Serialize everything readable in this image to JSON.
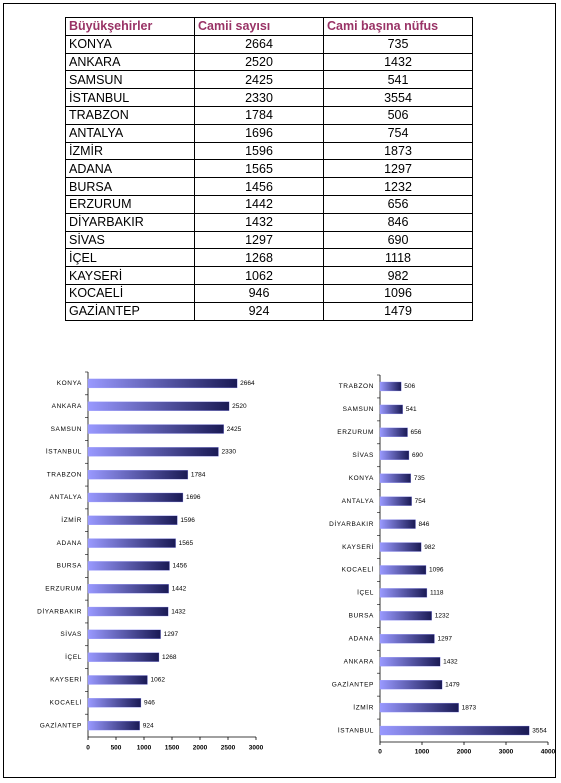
{
  "table": {
    "header": [
      "Büyükşehirler",
      "Camii sayısı",
      "Cami başına nüfus"
    ],
    "rows": [
      [
        "KONYA",
        2664,
        735
      ],
      [
        "ANKARA",
        2520,
        1432
      ],
      [
        "SAMSUN",
        2425,
        541
      ],
      [
        "İSTANBUL",
        2330,
        3554
      ],
      [
        "TRABZON",
        1784,
        506
      ],
      [
        "ANTALYA",
        1696,
        754
      ],
      [
        "İZMİR",
        1596,
        1873
      ],
      [
        "ADANA",
        1565,
        1297
      ],
      [
        "BURSA",
        1456,
        1232
      ],
      [
        "ERZURUM",
        1442,
        656
      ],
      [
        "DİYARBAKIR",
        1432,
        846
      ],
      [
        "SİVAS",
        1297,
        690
      ],
      [
        "İÇEL",
        1268,
        1118
      ],
      [
        "KAYSERİ",
        1062,
        982
      ],
      [
        "KOCAELİ",
        946,
        1096
      ],
      [
        "GAZİANTEP",
        924,
        1479
      ]
    ]
  },
  "chart_data": [
    {
      "type": "barh",
      "categories": [
        "KONYA",
        "ANKARA",
        "SAMSUN",
        "İSTANBUL",
        "TRABZON",
        "ANTALYA",
        "İZMİR",
        "ADANA",
        "BURSA",
        "ERZURUM",
        "DİYARBAKIR",
        "SİVAS",
        "İÇEL",
        "KAYSERİ",
        "KOCAELİ",
        "GAZİANTEP"
      ],
      "values": [
        2664,
        2520,
        2425,
        2330,
        1784,
        1696,
        1596,
        1565,
        1456,
        1442,
        1432,
        1297,
        1268,
        1062,
        946,
        924
      ],
      "xlim": [
        0,
        3000
      ],
      "xticks": [
        0,
        500,
        1000,
        1500,
        2000,
        2500,
        3000
      ],
      "color": "#9999ff"
    },
    {
      "type": "barh",
      "categories": [
        "TRABZON",
        "SAMSUN",
        "ERZURUM",
        "SİVAS",
        "KONYA",
        "ANTALYA",
        "DİYARBAKIR",
        "KAYSERİ",
        "KOCAELİ",
        "İÇEL",
        "BURSA",
        "ADANA",
        "ANKARA",
        "GAZİANTEP",
        "İZMİR",
        "İSTANBUL"
      ],
      "values": [
        506,
        541,
        656,
        690,
        735,
        754,
        846,
        982,
        1096,
        1118,
        1232,
        1297,
        1432,
        1479,
        1873,
        3554
      ],
      "xlim": [
        0,
        4000
      ],
      "xticks": [
        0,
        1000,
        2000,
        3000,
        4000
      ],
      "color": "#9999ff"
    }
  ]
}
